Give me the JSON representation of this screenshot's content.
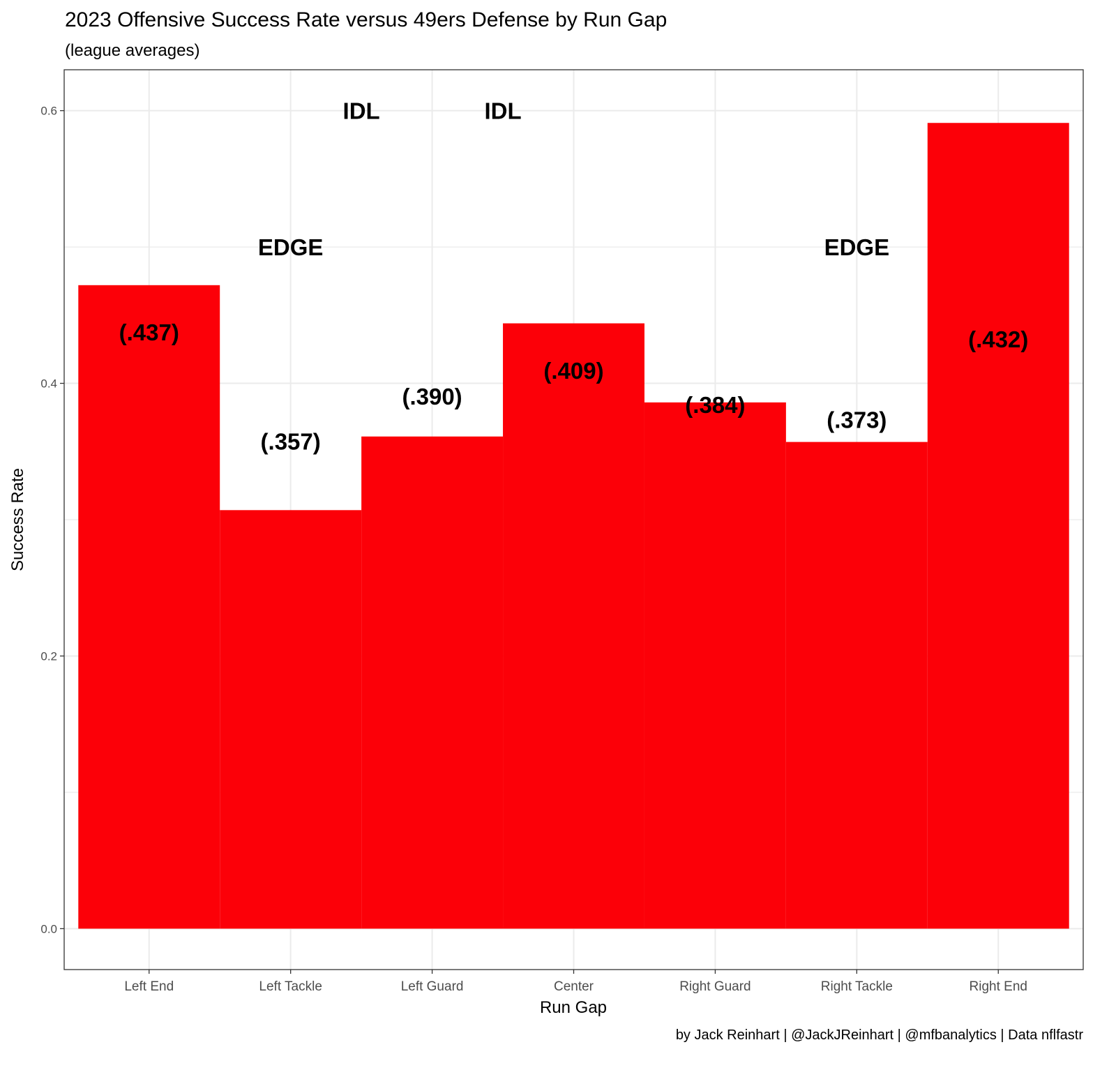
{
  "chart_data": {
    "type": "bar",
    "title": "2023 Offensive Success Rate versus 49ers Defense by Run Gap",
    "subtitle": "(league averages)",
    "xlabel": "Run Gap",
    "ylabel": "Success Rate",
    "caption": "by Jack Reinhart | @JackJReinhart | @mfbanalytics | Data nflfastr",
    "categories": [
      "Left End",
      "Left Tackle",
      "Left Guard",
      "Center",
      "Right Guard",
      "Right Tackle",
      "Right End"
    ],
    "values": [
      0.472,
      0.307,
      0.361,
      0.444,
      0.386,
      0.357,
      0.591
    ],
    "league_average_labels": [
      "(.437)",
      "(.357)",
      "(.390)",
      "(.409)",
      "(.384)",
      "(.373)",
      "(.432)"
    ],
    "league_average_values": [
      0.437,
      0.357,
      0.39,
      0.409,
      0.384,
      0.373,
      0.432
    ],
    "annotations": [
      {
        "text": "EDGE",
        "x": 2,
        "y": 0.5
      },
      {
        "text": "IDL",
        "x": 2.5,
        "y": 0.6
      },
      {
        "text": "IDL",
        "x": 3.5,
        "y": 0.6
      },
      {
        "text": "EDGE",
        "x": 6,
        "y": 0.5
      }
    ],
    "ylim": [
      -0.03,
      0.63
    ],
    "yticks": [
      0.0,
      0.2,
      0.4,
      0.6
    ],
    "ytick_labels": [
      "0.0",
      "0.2",
      "0.4",
      "0.6"
    ],
    "grid": true,
    "bar_color": "#FC0008"
  }
}
